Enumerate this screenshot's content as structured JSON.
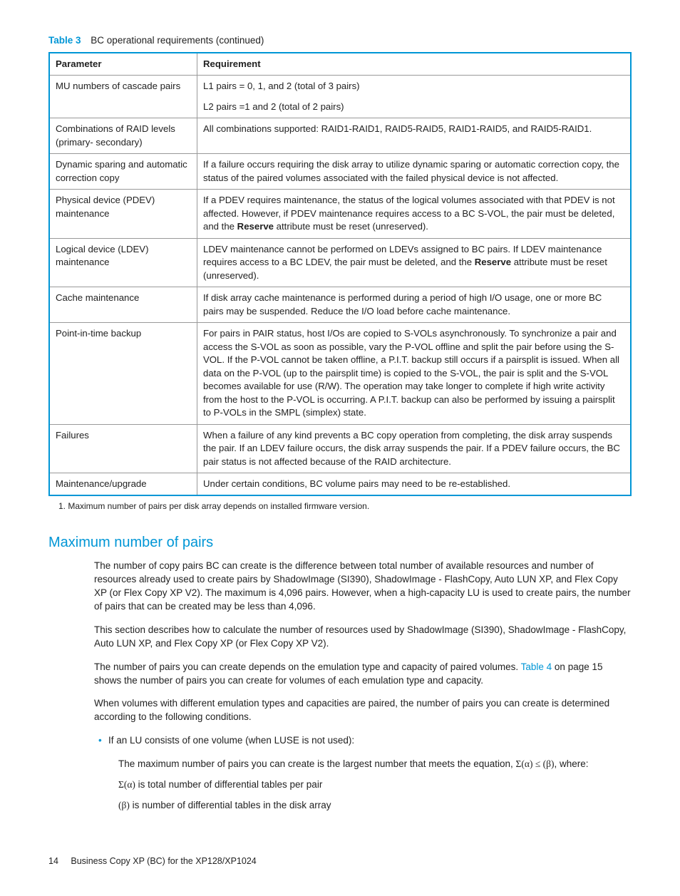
{
  "table": {
    "label": "Table 3",
    "caption": "BC operational requirements (continued)",
    "headers": {
      "col1": "Parameter",
      "col2": "Requirement"
    },
    "rows": {
      "r0": {
        "param": "MU numbers of cascade pairs",
        "req_a": "L1 pairs = 0, 1, and 2 (total of 3 pairs)",
        "req_b": "L2 pairs =1 and 2 (total of 2 pairs)"
      },
      "r1": {
        "param": "Combinations of RAID levels (primary- secondary)",
        "req": "All combinations supported: RAID1-RAID1, RAID5-RAID5, RAID1-RAID5, and RAID5-RAID1."
      },
      "r2": {
        "param": "Dynamic sparing and automatic correction copy",
        "req": "If a failure occurs requiring the disk array to utilize dynamic sparing or automatic correction copy, the status of the paired volumes associated with the failed physical device is not affected."
      },
      "r3": {
        "param": "Physical device (PDEV) maintenance",
        "req_a": "If a PDEV requires maintenance, the status of the logical volumes associated with that PDEV is not affected. However, if PDEV maintenance requires access to a BC S-VOL, the pair must be deleted, and the ",
        "req_bold": "Reserve",
        "req_b": " attribute must be reset (unreserved)."
      },
      "r4": {
        "param": "Logical device (LDEV) maintenance",
        "req_a": "LDEV maintenance cannot be performed on LDEVs assigned to BC pairs. If LDEV maintenance requires access to a BC LDEV, the pair must be deleted, and the ",
        "req_bold": "Reserve",
        "req_b": " attribute must be reset (unreserved)."
      },
      "r5": {
        "param": "Cache maintenance",
        "req": "If disk array cache maintenance is performed during a period of high I/O usage, one or more BC pairs may be suspended. Reduce the I/O load before cache maintenance."
      },
      "r6": {
        "param": "Point-in-time backup",
        "req": "For pairs in PAIR status, host I/Os are copied to S-VOLs asynchronously. To synchronize a pair and access the S-VOL as soon as possible, vary the P-VOL offline and split the pair before using the S-VOL. If the P-VOL cannot be taken offline, a P.I.T. backup still occurs if a pairsplit is issued. When all data on the P-VOL (up to the pairsplit time) is copied to the S-VOL, the pair is split and the S-VOL becomes available for use (R/W). The operation may take longer to complete if high write activity from the host to the P-VOL is occurring. A P.I.T. backup can also be performed by issuing a pairsplit to P-VOLs in the SMPL (simplex) state."
      },
      "r7": {
        "param": "Failures",
        "req": "When a failure of any kind prevents a BC copy operation from completing, the disk array suspends the pair. If an LDEV failure occurs, the disk array suspends the pair. If a PDEV failure occurs, the BC pair status is not affected because of the RAID architecture."
      },
      "r8": {
        "param": "Maintenance/upgrade",
        "req": "Under certain conditions, BC volume pairs may need to be re-established."
      }
    },
    "footnote": "1.  Maximum number of pairs per disk array depends on installed firmware version."
  },
  "section": {
    "heading": "Maximum number of pairs",
    "p1": "The number of copy pairs BC can create is the difference between total number of available resources and number of resources already used to create pairs by ShadowImage (SI390), ShadowImage - FlashCopy, Auto LUN XP, and Flex Copy XP (or Flex Copy XP V2). The maximum is 4,096 pairs. However, when a high-capacity LU is used to create pairs, the number of pairs that can be created may be less than 4,096.",
    "p2": "This section describes how to calculate the number of resources used by ShadowImage (SI390), ShadowImage - FlashCopy, Auto LUN XP, and Flex Copy XP (or Flex Copy XP V2).",
    "p3a": "The number of pairs you can create depends on the emulation type and capacity of paired volumes. ",
    "p3link": "Table 4",
    "p3b": " on page 15 shows the number of pairs you can create for volumes of each emulation type and capacity.",
    "p4": "When volumes with different emulation types and capacities are paired, the number of pairs you can create is determined according to the following conditions.",
    "bullet1": "If an LU consists of one volume (when LUSE is not used):",
    "sub1a": "The maximum number of pairs you can create is the largest number that meets the equation, ",
    "sub1eq": "Σ(α) ≤ (β)",
    "sub1b": ", where:",
    "sub2a": "Σ(α)",
    "sub2b": " is total number of differential tables per pair",
    "sub3a": "(β)",
    "sub3b": " is number of differential tables in the disk array"
  },
  "footer": {
    "pagenum": "14",
    "title": "Business Copy XP (BC) for the XP128/XP1024"
  }
}
